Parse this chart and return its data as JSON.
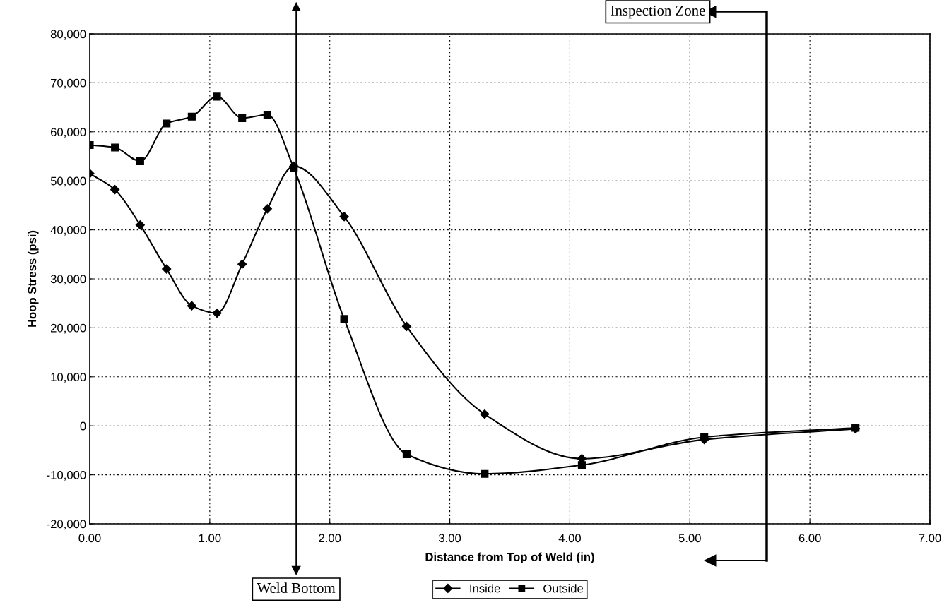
{
  "chart_data": {
    "type": "line",
    "xlabel": "Distance from Top of Weld (in)",
    "ylabel": "Hoop Stress (psi)",
    "x": [
      0,
      0.21,
      0.42,
      0.64,
      0.85,
      1.06,
      1.27,
      1.48,
      1.7,
      2.12,
      2.64,
      3.29,
      4.1,
      5.12,
      6.38
    ],
    "series": [
      {
        "name": "Inside",
        "color": "#000000",
        "marker": "diamond",
        "values": [
          51500,
          48200,
          41000,
          32000,
          24500,
          23000,
          33000,
          44300,
          53000,
          42700,
          20300,
          2400,
          -6700,
          -2800,
          -600
        ]
      },
      {
        "name": "Outside",
        "color": "#000000",
        "marker": "square",
        "values": [
          57300,
          56800,
          54000,
          61700,
          63100,
          67200,
          62800,
          63500,
          52600,
          21800,
          -5800,
          -9800,
          -8000,
          -2300,
          -400
        ]
      }
    ],
    "xlim": [
      0,
      7
    ],
    "xticks": [
      {
        "value": 0,
        "label": "0.00"
      },
      {
        "value": 1,
        "label": "1.00"
      },
      {
        "value": 2,
        "label": "2.00"
      },
      {
        "value": 3,
        "label": "3.00"
      },
      {
        "value": 4,
        "label": "4.00"
      },
      {
        "value": 5,
        "label": "5.00"
      },
      {
        "value": 6,
        "label": "6.00"
      },
      {
        "value": 7,
        "label": "7.00"
      }
    ],
    "ylim": [
      -20000,
      80000
    ],
    "yticks": [
      {
        "value": -20000,
        "label": "-20,000"
      },
      {
        "value": -10000,
        "label": "-10,000"
      },
      0,
      {
        "value": 10000,
        "label": "10,000"
      },
      {
        "value": 20000,
        "label": "20,000"
      },
      {
        "value": 30000,
        "label": "30,000"
      },
      {
        "value": 40000,
        "label": "40,000"
      },
      {
        "value": 50000,
        "label": "50,000"
      },
      {
        "value": 60000,
        "label": "60,000"
      },
      {
        "value": 70000,
        "label": "70,000"
      },
      {
        "value": 80000,
        "label": "80,000"
      }
    ],
    "ref_lines": [
      {
        "axis": "x",
        "value": 1.72,
        "label": "Weld Bottom",
        "color": "#000000"
      },
      {
        "axis": "x",
        "value": 5.64,
        "label": "Inspection Zone",
        "color": "#000000"
      }
    ],
    "grid": true,
    "legend": "bottom",
    "line_style": "solid"
  }
}
